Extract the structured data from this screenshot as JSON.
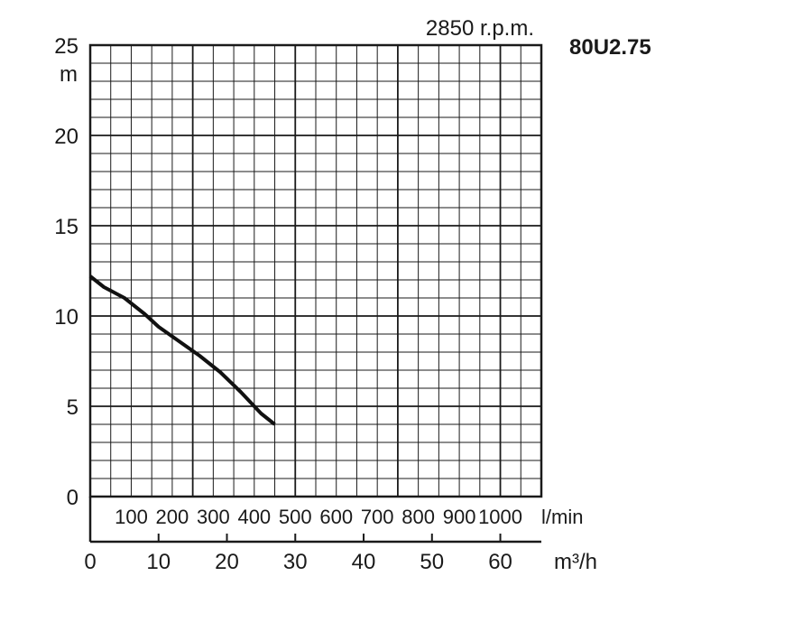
{
  "chart_data": {
    "type": "line",
    "speed_label": "2850 r.p.m.",
    "model": "80U2.75",
    "ylabel": "m",
    "ylim": [
      0,
      25
    ],
    "y_ticks": [
      "0",
      "5",
      "10",
      "15",
      "20",
      "25"
    ],
    "xlabel": "m³/h",
    "xlim": [
      0,
      66
    ],
    "x_ticks": [
      "0",
      "10",
      "20",
      "30",
      "40",
      "50",
      "60"
    ],
    "secondary_x_label": "l/min",
    "secondary_x_ticks": [
      "100",
      "200",
      "300",
      "400",
      "500",
      "600",
      "700",
      "800",
      "900",
      "1000"
    ],
    "grid": true,
    "series": [
      {
        "x": [
          0,
          2,
          5,
          8,
          10,
          13,
          16,
          19,
          22,
          25,
          27
        ],
        "y": [
          12.2,
          11.6,
          11.0,
          10.1,
          9.4,
          8.6,
          7.8,
          6.9,
          5.8,
          4.6,
          4.0
        ],
        "color": "#111111"
      }
    ]
  }
}
